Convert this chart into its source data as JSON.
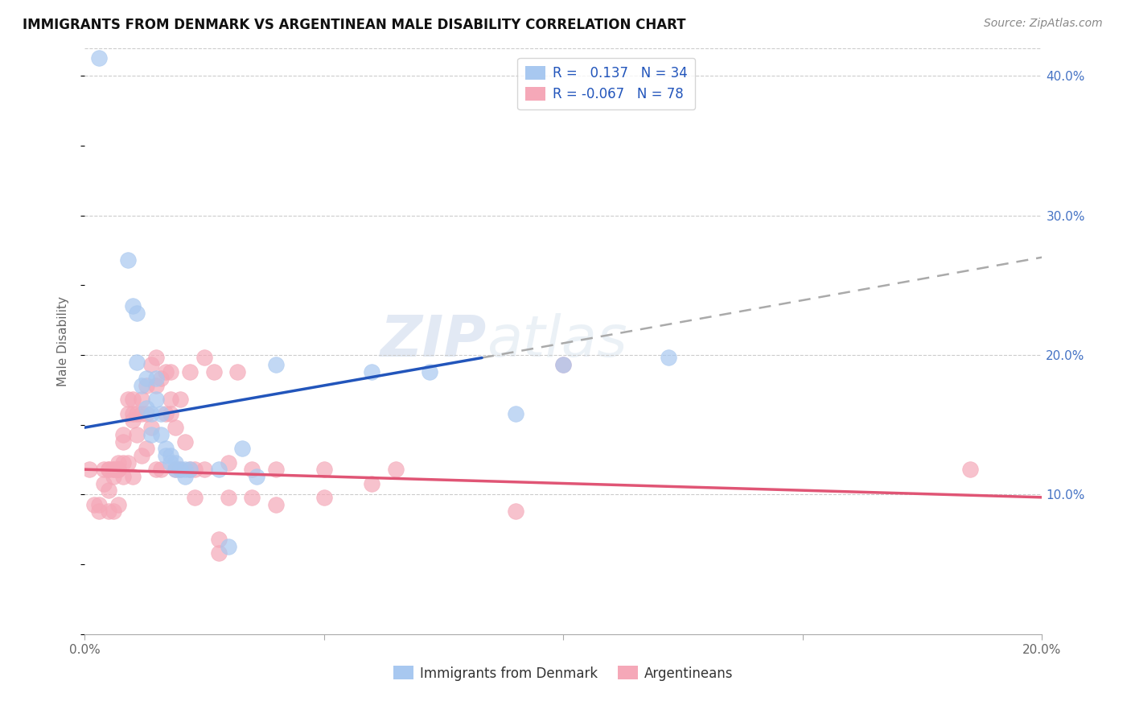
{
  "title": "IMMIGRANTS FROM DENMARK VS ARGENTINEAN MALE DISABILITY CORRELATION CHART",
  "source": "Source: ZipAtlas.com",
  "ylabel": "Male Disability",
  "xlim": [
    0.0,
    0.2
  ],
  "ylim": [
    0.0,
    0.42
  ],
  "x_ticks": [
    0.0,
    0.05,
    0.1,
    0.15,
    0.2
  ],
  "x_tick_labels": [
    "0.0%",
    "",
    "",
    "",
    "20.0%"
  ],
  "y_ticks_right": [
    0.1,
    0.2,
    0.3,
    0.4
  ],
  "y_tick_labels_right": [
    "10.0%",
    "20.0%",
    "30.0%",
    "40.0%"
  ],
  "blue_color": "#a8c8f0",
  "pink_color": "#f5a8b8",
  "blue_line_color": "#2255bb",
  "pink_line_color": "#e05575",
  "dashed_line_color": "#aaaaaa",
  "watermark": "ZIPatlas",
  "blue_line_x": [
    0.0,
    0.083
  ],
  "blue_line_y": [
    0.148,
    0.198
  ],
  "dash_line_x": [
    0.083,
    0.2
  ],
  "dash_line_y": [
    0.198,
    0.27
  ],
  "pink_line_x": [
    0.0,
    0.2
  ],
  "pink_line_y": [
    0.118,
    0.098
  ],
  "blue_scatter_x": [
    0.003,
    0.009,
    0.01,
    0.011,
    0.011,
    0.012,
    0.013,
    0.013,
    0.014,
    0.014,
    0.015,
    0.015,
    0.016,
    0.016,
    0.017,
    0.017,
    0.018,
    0.018,
    0.019,
    0.019,
    0.02,
    0.021,
    0.021,
    0.022,
    0.028,
    0.03,
    0.033,
    0.036,
    0.04,
    0.06,
    0.072,
    0.09,
    0.1,
    0.122
  ],
  "blue_scatter_y": [
    0.413,
    0.268,
    0.235,
    0.23,
    0.195,
    0.178,
    0.183,
    0.162,
    0.158,
    0.143,
    0.183,
    0.168,
    0.158,
    0.143,
    0.133,
    0.128,
    0.128,
    0.123,
    0.123,
    0.118,
    0.118,
    0.118,
    0.113,
    0.118,
    0.118,
    0.063,
    0.133,
    0.113,
    0.193,
    0.188,
    0.188,
    0.158,
    0.193,
    0.198
  ],
  "pink_scatter_x": [
    0.001,
    0.002,
    0.003,
    0.003,
    0.004,
    0.004,
    0.005,
    0.005,
    0.005,
    0.005,
    0.006,
    0.006,
    0.006,
    0.006,
    0.007,
    0.007,
    0.007,
    0.007,
    0.007,
    0.008,
    0.008,
    0.008,
    0.008,
    0.009,
    0.009,
    0.009,
    0.01,
    0.01,
    0.01,
    0.01,
    0.011,
    0.011,
    0.012,
    0.012,
    0.012,
    0.013,
    0.013,
    0.013,
    0.014,
    0.014,
    0.015,
    0.015,
    0.015,
    0.016,
    0.016,
    0.017,
    0.017,
    0.018,
    0.018,
    0.018,
    0.019,
    0.019,
    0.02,
    0.02,
    0.021,
    0.022,
    0.022,
    0.023,
    0.023,
    0.025,
    0.025,
    0.027,
    0.028,
    0.028,
    0.03,
    0.03,
    0.032,
    0.035,
    0.035,
    0.04,
    0.04,
    0.05,
    0.05,
    0.06,
    0.065,
    0.09,
    0.1,
    0.185
  ],
  "pink_scatter_y": [
    0.118,
    0.093,
    0.093,
    0.088,
    0.118,
    0.108,
    0.118,
    0.118,
    0.103,
    0.088,
    0.118,
    0.118,
    0.113,
    0.088,
    0.123,
    0.118,
    0.118,
    0.118,
    0.093,
    0.143,
    0.138,
    0.123,
    0.113,
    0.168,
    0.158,
    0.123,
    0.168,
    0.158,
    0.153,
    0.113,
    0.158,
    0.143,
    0.168,
    0.158,
    0.128,
    0.178,
    0.158,
    0.133,
    0.193,
    0.148,
    0.198,
    0.178,
    0.118,
    0.183,
    0.118,
    0.188,
    0.158,
    0.188,
    0.168,
    0.158,
    0.148,
    0.118,
    0.168,
    0.118,
    0.138,
    0.188,
    0.118,
    0.118,
    0.098,
    0.198,
    0.118,
    0.188,
    0.068,
    0.058,
    0.123,
    0.098,
    0.188,
    0.118,
    0.098,
    0.118,
    0.093,
    0.098,
    0.118,
    0.108,
    0.118,
    0.088,
    0.193,
    0.118
  ]
}
